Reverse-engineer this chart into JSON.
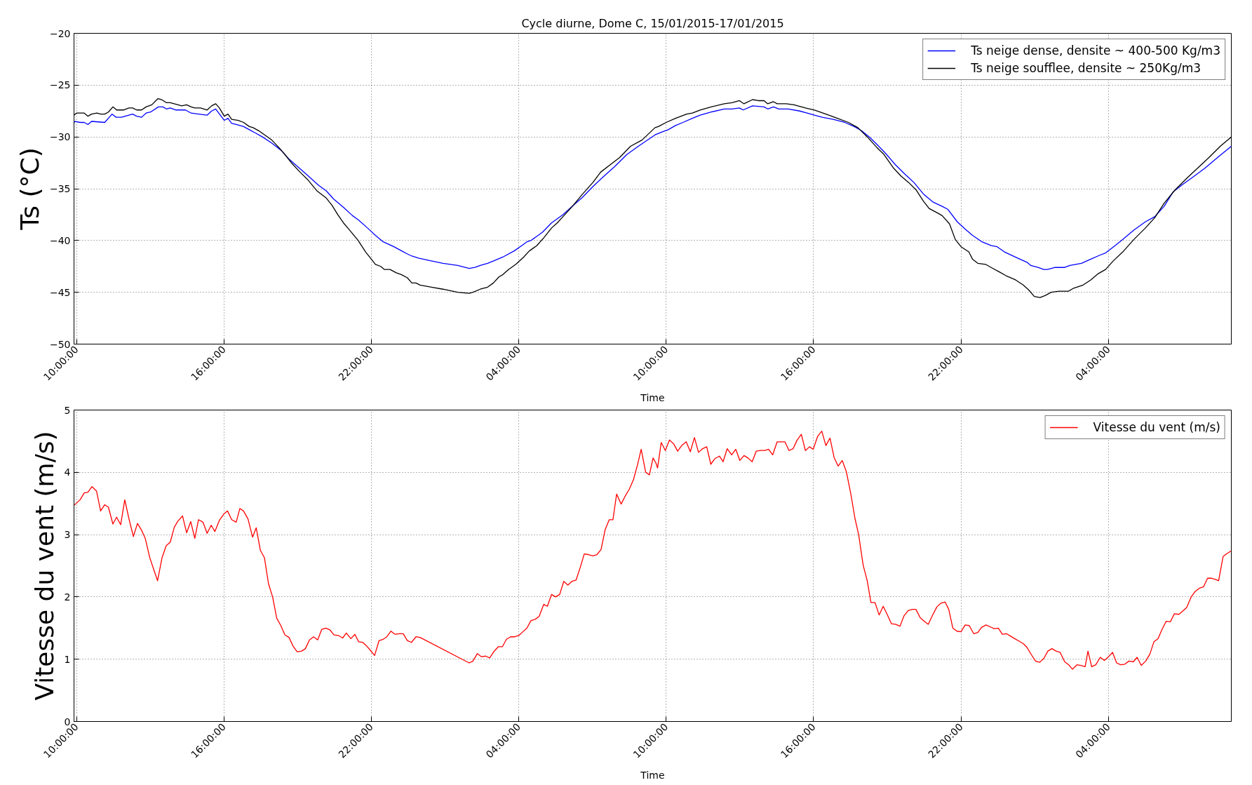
{
  "chart_data": [
    {
      "type": "line",
      "title": "Cycle diurne, Dome C, 15/01/2015-17/01/2015",
      "xlabel": "Time",
      "ylabel": "Ts (°C)",
      "xlim": [
        "2015-01-15T09:54",
        "2015-01-17T09:00"
      ],
      "xticks": [
        {
          "value": "2015-01-15T10:00",
          "label": "10:00:00"
        },
        {
          "value": "2015-01-15T16:00",
          "label": "16:00:00"
        },
        {
          "value": "2015-01-15T22:00",
          "label": "22:00:00"
        },
        {
          "value": "2015-01-16T04:00",
          "label": "04:00:00"
        },
        {
          "value": "2015-01-16T10:00",
          "label": "10:00:00"
        },
        {
          "value": "2015-01-16T16:00",
          "label": "16:00:00"
        },
        {
          "value": "2015-01-16T22:00",
          "label": "22:00:00"
        },
        {
          "value": "2015-01-17T04:00",
          "label": "04:00:00"
        }
      ],
      "ylim": [
        -50,
        -20
      ],
      "yticks": [
        -50,
        -45,
        -40,
        -35,
        -30,
        -25,
        -20
      ],
      "grid": true,
      "legend": "top right",
      "line_style": "solid",
      "series": [
        {
          "name": "Ts neige dense, densite ~ 400-500 Kg/m3",
          "color": "#0000ff",
          "x": [
            "2015-01-15T09:54",
            "2015-01-15T09:57",
            "2015-01-15T10:09",
            "2015-01-15T10:19",
            "2015-01-15T10:28",
            "2015-01-15T10:37",
            "2015-01-15T11:09",
            "2015-01-15T11:27",
            "2015-01-15T11:37",
            "2015-01-15T11:50",
            "2015-01-15T12:17",
            "2015-01-15T12:27",
            "2015-01-15T12:39",
            "2015-01-15T12:50",
            "2015-01-15T13:01",
            "2015-01-15T13:20",
            "2015-01-15T13:31",
            "2015-01-15T13:40",
            "2015-01-15T13:49",
            "2015-01-15T14:03",
            "2015-01-15T14:26",
            "2015-01-15T14:40",
            "2015-01-15T14:58",
            "2015-01-15T15:19",
            "2015-01-15T15:30",
            "2015-01-15T15:40",
            "2015-01-15T16:01",
            "2015-01-15T16:10",
            "2015-01-15T16:19",
            "2015-01-15T16:30",
            "2015-01-15T16:48",
            "2015-01-15T17:02",
            "2015-01-15T17:16",
            "2015-01-15T17:34",
            "2015-01-15T17:57",
            "2015-01-15T18:20",
            "2015-01-15T18:38",
            "2015-01-15T19:01",
            "2015-01-15T19:24",
            "2015-01-15T19:52",
            "2015-01-15T20:10",
            "2015-01-15T20:28",
            "2015-01-15T20:52",
            "2015-01-15T21:14",
            "2015-01-15T21:28",
            "2015-01-15T21:51",
            "2015-01-15T22:10",
            "2015-01-15T22:28",
            "2015-01-15T22:55",
            "2015-01-15T23:14",
            "2015-01-15T23:28",
            "2015-01-15T23:39",
            "2015-01-15T23:55",
            "2015-01-16T00:18",
            "2015-01-16T00:55",
            "2015-01-16T01:31",
            "2015-01-16T01:59",
            "2015-01-16T02:13",
            "2015-01-16T02:26",
            "2015-01-16T02:44",
            "2015-01-16T03:03",
            "2015-01-16T03:21",
            "2015-01-16T03:49",
            "2015-01-16T04:07",
            "2015-01-16T04:21",
            "2015-01-16T04:30",
            "2015-01-16T04:58",
            "2015-01-16T05:20",
            "2015-01-16T05:48",
            "2015-01-16T06:16",
            "2015-01-16T06:34",
            "2015-01-16T07:01",
            "2015-01-16T07:25",
            "2015-01-16T07:56",
            "2015-01-16T08:24",
            "2015-01-16T08:52",
            "2015-01-16T09:33",
            "2015-01-16T09:51",
            "2015-01-16T10:05",
            "2015-01-16T10:23",
            "2015-01-16T10:41",
            "2015-01-16T11:04",
            "2015-01-16T11:23",
            "2015-01-16T11:50",
            "2015-01-16T12:22",
            "2015-01-16T12:41",
            "2015-01-16T12:59",
            "2015-01-16T13:08",
            "2015-01-16T13:31",
            "2015-01-16T13:59",
            "2015-01-16T14:08",
            "2015-01-16T14:22",
            "2015-01-16T14:35",
            "2015-01-16T14:58",
            "2015-01-16T15:26",
            "2015-01-16T15:44",
            "2015-01-16T16:02",
            "2015-01-16T16:21",
            "2015-01-16T16:48",
            "2015-01-16T17:16",
            "2015-01-16T17:39",
            "2015-01-16T17:57",
            "2015-01-16T18:16",
            "2015-01-16T18:34",
            "2015-01-16T18:56",
            "2015-01-16T19:20",
            "2015-01-16T19:43",
            "2015-01-16T20:05",
            "2015-01-16T20:28",
            "2015-01-16T20:52",
            "2015-01-16T21:14",
            "2015-01-16T21:28",
            "2015-01-16T21:51",
            "2015-01-16T22:10",
            "2015-01-16T22:28",
            "2015-01-16T22:50",
            "2015-01-16T23:14",
            "2015-01-16T23:28",
            "2015-01-16T23:46",
            "2015-01-17T00:18",
            "2015-01-17T00:41",
            "2015-01-17T00:50",
            "2015-01-17T01:08",
            "2015-01-17T01:22",
            "2015-01-17T01:31",
            "2015-01-17T01:50",
            "2015-01-17T02:13",
            "2015-01-17T02:26",
            "2015-01-17T02:54",
            "2015-01-17T03:17",
            "2015-01-17T03:40",
            "2015-01-17T03:53",
            "2015-01-17T04:16",
            "2015-01-17T04:35",
            "2015-01-17T05:02",
            "2015-01-17T05:30",
            "2015-01-17T05:53",
            "2015-01-17T06:16",
            "2015-01-17T06:38",
            "2015-01-17T07:01",
            "2015-01-17T07:29",
            "2015-01-17T07:56",
            "2015-01-17T08:29",
            "2015-01-17T09:00"
          ],
          "values": [
            -28.6,
            -28.5,
            -28.6,
            -28.6,
            -28.8,
            -28.5,
            -28.6,
            -27.8,
            -28.1,
            -28.1,
            -27.8,
            -28.0,
            -28.1,
            -27.7,
            -27.6,
            -27.1,
            -27.1,
            -27.3,
            -27.2,
            -27.4,
            -27.4,
            -27.7,
            -27.8,
            -27.9,
            -27.5,
            -27.3,
            -28.4,
            -28.2,
            -28.7,
            -28.8,
            -29.0,
            -29.3,
            -29.6,
            -30.0,
            -30.6,
            -31.3,
            -32.1,
            -32.9,
            -33.7,
            -34.7,
            -35.2,
            -36.0,
            -36.8,
            -37.6,
            -38.0,
            -38.8,
            -39.5,
            -40.1,
            -40.6,
            -41.0,
            -41.3,
            -41.5,
            -41.7,
            -41.9,
            -42.2,
            -42.4,
            -42.7,
            -42.6,
            -42.4,
            -42.2,
            -41.9,
            -41.6,
            -41.0,
            -40.5,
            -40.1,
            -40.0,
            -39.2,
            -38.3,
            -37.5,
            -36.5,
            -35.9,
            -34.8,
            -33.9,
            -32.8,
            -31.7,
            -30.9,
            -29.8,
            -29.5,
            -29.3,
            -28.9,
            -28.6,
            -28.2,
            -27.9,
            -27.6,
            -27.3,
            -27.3,
            -27.2,
            -27.4,
            -27.0,
            -27.1,
            -27.3,
            -27.1,
            -27.3,
            -27.3,
            -27.5,
            -27.7,
            -27.9,
            -28.1,
            -28.3,
            -28.6,
            -29.0,
            -29.4,
            -30.0,
            -30.7,
            -31.6,
            -32.7,
            -33.6,
            -34.4,
            -35.5,
            -36.3,
            -36.7,
            -37.0,
            -38.2,
            -38.9,
            -39.5,
            -40.1,
            -40.5,
            -40.6,
            -41.1,
            -41.7,
            -42.1,
            -42.4,
            -42.6,
            -42.8,
            -42.8,
            -42.6,
            -42.6,
            -42.4,
            -42.2,
            -41.8,
            -41.4,
            -41.2,
            -40.5,
            -39.9,
            -39.0,
            -38.2,
            -37.7,
            -36.7,
            -35.3,
            -34.6,
            -33.8,
            -33.0,
            -31.9,
            -30.9
          ]
        },
        {
          "name": "Ts neige soufflee, densite ~ 250Kg/m3",
          "color": "#000000",
          "x": [
            "2015-01-15T09:54",
            "2015-01-15T10:00",
            "2015-01-15T10:19",
            "2015-01-15T10:28",
            "2015-01-15T10:37",
            "2015-01-15T10:50",
            "2015-01-15T10:59",
            "2015-01-15T11:09",
            "2015-01-15T11:18",
            "2015-01-15T11:29",
            "2015-01-15T11:38",
            "2015-01-15T11:55",
            "2015-01-15T12:08",
            "2015-01-15T12:17",
            "2015-01-15T12:27",
            "2015-01-15T12:39",
            "2015-01-15T12:50",
            "2015-01-15T13:04",
            "2015-01-15T13:19",
            "2015-01-15T13:28",
            "2015-01-15T13:40",
            "2015-01-15T13:49",
            "2015-01-15T14:08",
            "2015-01-15T14:17",
            "2015-01-15T14:29",
            "2015-01-15T14:40",
            "2015-01-15T14:49",
            "2015-01-15T15:03",
            "2015-01-15T15:19",
            "2015-01-15T15:30",
            "2015-01-15T15:40",
            "2015-01-15T15:49",
            "2015-01-15T16:01",
            "2015-01-15T16:10",
            "2015-01-15T16:19",
            "2015-01-15T16:35",
            "2015-01-15T16:48",
            "2015-01-15T17:02",
            "2015-01-15T17:11",
            "2015-01-15T17:25",
            "2015-01-15T17:43",
            "2015-01-15T17:57",
            "2015-01-15T18:16",
            "2015-01-15T18:29",
            "2015-01-15T18:47",
            "2015-01-15T19:06",
            "2015-01-15T19:24",
            "2015-01-15T19:47",
            "2015-01-15T20:10",
            "2015-01-15T20:24",
            "2015-01-15T20:38",
            "2015-01-15T20:52",
            "2015-01-15T21:05",
            "2015-01-15T21:28",
            "2015-01-15T21:46",
            "2015-01-15T22:00",
            "2015-01-15T22:10",
            "2015-01-15T22:23",
            "2015-01-15T22:32",
            "2015-01-15T22:46",
            "2015-01-15T23:00",
            "2015-01-15T23:14",
            "2015-01-15T23:28",
            "2015-01-15T23:39",
            "2015-01-15T23:49",
            "2015-01-15T23:59",
            "2015-01-16T00:27",
            "2015-01-16T00:55",
            "2015-01-16T01:31",
            "2015-01-16T01:59",
            "2015-01-16T02:08",
            "2015-01-16T02:26",
            "2015-01-16T02:44",
            "2015-01-16T02:58",
            "2015-01-16T03:12",
            "2015-01-16T03:21",
            "2015-01-16T03:35",
            "2015-01-16T03:53",
            "2015-01-16T04:12",
            "2015-01-16T04:26",
            "2015-01-16T04:44",
            "2015-01-16T05:02",
            "2015-01-16T05:20",
            "2015-01-16T05:34",
            "2015-01-16T05:48",
            "2015-01-16T06:11",
            "2015-01-16T06:34",
            "2015-01-16T07:01",
            "2015-01-16T07:20",
            "2015-01-16T07:43",
            "2015-01-16T08:06",
            "2015-01-16T08:33",
            "2015-01-16T09:01",
            "2015-01-16T09:33",
            "2015-01-16T09:41",
            "2015-01-16T10:00",
            "2015-01-16T10:23",
            "2015-01-16T10:50",
            "2015-01-16T11:04",
            "2015-01-16T11:23",
            "2015-01-16T11:50",
            "2015-01-16T12:22",
            "2015-01-16T12:41",
            "2015-01-16T12:59",
            "2015-01-16T13:10",
            "2015-01-16T13:31",
            "2015-01-16T13:45",
            "2015-01-16T13:59",
            "2015-01-16T14:08",
            "2015-01-16T14:22",
            "2015-01-16T14:31",
            "2015-01-16T14:53",
            "2015-01-16T15:12",
            "2015-01-16T15:40",
            "2015-01-16T16:02",
            "2015-01-16T16:30",
            "2015-01-16T16:58",
            "2015-01-16T17:25",
            "2015-01-16T17:48",
            "2015-01-16T18:11",
            "2015-01-16T18:34",
            "2015-01-16T18:52",
            "2015-01-16T19:15",
            "2015-01-16T19:34",
            "2015-01-16T19:52",
            "2015-01-16T20:10",
            "2015-01-16T20:28",
            "2015-01-16T20:42",
            "2015-01-16T21:05",
            "2015-01-16T21:14",
            "2015-01-16T21:32",
            "2015-01-16T21:46",
            "2015-01-16T22:00",
            "2015-01-16T22:19",
            "2015-01-16T22:28",
            "2015-01-16T22:41",
            "2015-01-16T23:00",
            "2015-01-16T23:18",
            "2015-01-16T23:32",
            "2015-01-16T23:50",
            "2015-01-17T00:13",
            "2015-01-17T00:32",
            "2015-01-17T00:46",
            "2015-01-17T00:59",
            "2015-01-17T01:13",
            "2015-01-17T01:26",
            "2015-01-17T01:40",
            "2015-01-17T01:59",
            "2015-01-17T02:22",
            "2015-01-17T02:35",
            "2015-01-17T02:58",
            "2015-01-17T03:17",
            "2015-01-17T03:35",
            "2015-01-17T03:53",
            "2015-01-17T04:11",
            "2015-01-17T04:35",
            "2015-01-17T05:02",
            "2015-01-17T05:30",
            "2015-01-17T05:53",
            "2015-01-17T06:16",
            "2015-01-17T06:43",
            "2015-01-17T07:11",
            "2015-01-17T07:38",
            "2015-01-17T08:05",
            "2015-01-17T08:33",
            "2015-01-17T09:00"
          ],
          "values": [
            -27.9,
            -27.7,
            -27.7,
            -28.0,
            -27.8,
            -27.7,
            -27.8,
            -27.8,
            -27.6,
            -27.1,
            -27.4,
            -27.4,
            -27.2,
            -27.2,
            -27.4,
            -27.4,
            -27.1,
            -26.9,
            -26.3,
            -26.4,
            -26.7,
            -26.7,
            -26.9,
            -27.0,
            -26.9,
            -27.1,
            -27.2,
            -27.2,
            -27.4,
            -27.0,
            -26.8,
            -27.2,
            -28.0,
            -27.8,
            -28.3,
            -28.4,
            -28.6,
            -29.0,
            -29.1,
            -29.4,
            -29.9,
            -30.3,
            -31.1,
            -31.7,
            -32.6,
            -33.4,
            -34.1,
            -35.2,
            -35.9,
            -36.6,
            -37.5,
            -38.3,
            -38.9,
            -40.0,
            -41.1,
            -41.8,
            -42.3,
            -42.5,
            -42.8,
            -42.8,
            -43.1,
            -43.3,
            -43.6,
            -44.1,
            -44.1,
            -44.3,
            -44.5,
            -44.7,
            -45.0,
            -45.1,
            -45.0,
            -44.7,
            -44.5,
            -44.1,
            -43.5,
            -43.3,
            -42.8,
            -42.3,
            -41.6,
            -41.0,
            -40.5,
            -39.7,
            -38.8,
            -38.3,
            -37.7,
            -36.7,
            -35.6,
            -34.4,
            -33.4,
            -32.7,
            -32.0,
            -30.9,
            -30.3,
            -29.1,
            -29.0,
            -28.6,
            -28.2,
            -27.8,
            -27.7,
            -27.4,
            -27.1,
            -26.8,
            -26.7,
            -26.5,
            -26.8,
            -26.4,
            -26.5,
            -26.5,
            -26.8,
            -26.6,
            -26.8,
            -26.8,
            -26.9,
            -27.2,
            -27.4,
            -27.8,
            -28.2,
            -28.6,
            -29.1,
            -30.0,
            -31.0,
            -31.7,
            -33.0,
            -33.8,
            -34.4,
            -35.1,
            -36.2,
            -36.9,
            -37.4,
            -37.6,
            -38.4,
            -39.9,
            -40.6,
            -41.1,
            -41.8,
            -42.2,
            -42.3,
            -42.7,
            -43.0,
            -43.4,
            -43.8,
            -44.3,
            -44.8,
            -45.4,
            -45.5,
            -45.3,
            -45.0,
            -44.9,
            -44.9,
            -44.6,
            -44.3,
            -43.8,
            -43.2,
            -42.8,
            -42.0,
            -41.1,
            -39.9,
            -38.8,
            -37.8,
            -36.4,
            -35.1,
            -34.0,
            -33.0,
            -32.0,
            -30.9,
            -30.0
          ]
        }
      ]
    },
    {
      "type": "line",
      "xlabel": "Time",
      "ylabel": "Vitesse du vent (m/s)",
      "xlim": [
        "2015-01-15T09:54",
        "2015-01-17T09:00"
      ],
      "xticks": [
        {
          "value": "2015-01-15T10:00",
          "label": "10:00:00"
        },
        {
          "value": "2015-01-15T16:00",
          "label": "16:00:00"
        },
        {
          "value": "2015-01-15T22:00",
          "label": "22:00:00"
        },
        {
          "value": "2015-01-16T04:00",
          "label": "04:00:00"
        },
        {
          "value": "2015-01-16T10:00",
          "label": "10:00:00"
        },
        {
          "value": "2015-01-16T16:00",
          "label": "16:00:00"
        },
        {
          "value": "2015-01-16T22:00",
          "label": "22:00:00"
        },
        {
          "value": "2015-01-17T04:00",
          "label": "04:00:00"
        }
      ],
      "ylim": [
        0,
        5
      ],
      "yticks": [
        0,
        1,
        2,
        3,
        4,
        5
      ],
      "grid": true,
      "legend": "top right",
      "line_style": "solid",
      "series": [
        {
          "name": "Vitesse du vent (m/s)",
          "color": "#ff0000",
          "x": [
            "2015-01-15T09:54",
            "2015-01-15T10:09",
            "2015-01-15T10:19",
            "2015-01-15T10:28",
            "2015-01-15T10:38",
            "2015-01-15T10:49",
            "2015-01-15T10:59",
            "2015-01-15T11:09",
            "2015-01-15T11:18",
            "2015-01-15T11:29",
            "2015-01-15T11:38",
            "2015-01-15T11:48",
            "2015-01-15T11:58",
            "2015-01-15T12:08",
            "2015-01-15T12:19",
            "2015-01-15T12:29",
            "2015-01-15T12:39",
            "2015-01-15T12:48",
            "2015-01-15T12:59",
            "2015-01-15T13:18",
            "2015-01-15T13:29",
            "2015-01-15T13:39",
            "2015-01-15T13:49",
            "2015-01-15T13:59",
            "2015-01-15T14:08",
            "2015-01-15T14:19",
            "2015-01-15T14:29",
            "2015-01-15T14:39",
            "2015-01-15T14:49",
            "2015-01-15T14:58",
            "2015-01-15T15:09",
            "2015-01-15T15:19",
            "2015-01-15T15:29",
            "2015-01-15T15:38",
            "2015-01-15T15:49",
            "2015-01-15T16:01",
            "2015-01-15T16:09",
            "2015-01-15T16:19",
            "2015-01-15T16:30",
            "2015-01-15T16:39",
            "2015-01-15T16:48",
            "2015-01-15T16:59",
            "2015-01-15T17:10",
            "2015-01-15T17:19",
            "2015-01-15T17:29",
            "2015-01-15T17:39",
            "2015-01-15T17:49",
            "2015-01-15T17:59",
            "2015-01-15T18:09",
            "2015-01-15T18:19",
            "2015-01-15T18:29",
            "2015-01-15T18:39",
            "2015-01-15T18:49",
            "2015-01-15T18:59",
            "2015-01-15T19:10",
            "2015-01-15T19:19",
            "2015-01-15T19:29",
            "2015-01-15T19:39",
            "2015-01-15T19:49",
            "2015-01-15T19:59",
            "2015-01-15T20:09",
            "2015-01-15T20:19",
            "2015-01-15T20:29",
            "2015-01-15T20:40",
            "2015-01-15T20:50",
            "2015-01-15T20:59",
            "2015-01-15T21:10",
            "2015-01-15T21:20",
            "2015-01-15T21:29",
            "2015-01-15T21:39",
            "2015-01-15T21:49",
            "2015-01-15T21:58",
            "2015-01-15T22:08",
            "2015-01-15T22:19",
            "2015-01-15T22:29",
            "2015-01-15T22:38",
            "2015-01-15T22:48",
            "2015-01-15T22:58",
            "2015-01-15T23:08",
            "2015-01-15T23:18",
            "2015-01-15T23:28",
            "2015-01-15T23:38",
            "2015-01-15T23:49",
            "2015-01-15T23:59",
            "2015-01-16T01:59",
            "2015-01-16T02:08",
            "2015-01-16T02:19",
            "2015-01-16T02:29",
            "2015-01-16T02:39",
            "2015-01-16T02:49",
            "2015-01-16T02:59",
            "2015-01-16T03:10",
            "2015-01-16T03:20",
            "2015-01-16T03:30",
            "2015-01-16T03:40",
            "2015-01-16T03:50",
            "2015-01-16T04:00",
            "2015-01-16T04:10",
            "2015-01-16T04:20",
            "2015-01-16T04:30",
            "2015-01-16T04:40",
            "2015-01-16T04:50",
            "2015-01-16T05:01",
            "2015-01-16T05:10",
            "2015-01-16T05:20",
            "2015-01-16T05:30",
            "2015-01-16T05:40",
            "2015-01-16T05:50",
            "2015-01-16T06:00",
            "2015-01-16T06:10",
            "2015-01-16T06:20",
            "2015-01-16T06:30",
            "2015-01-16T06:40",
            "2015-01-16T06:50",
            "2015-01-16T07:01",
            "2015-01-16T07:11",
            "2015-01-16T07:21",
            "2015-01-16T07:31",
            "2015-01-16T07:41",
            "2015-01-16T07:50",
            "2015-01-16T07:59",
            "2015-01-16T08:10",
            "2015-01-16T08:20",
            "2015-01-16T08:30",
            "2015-01-16T08:40",
            "2015-01-16T08:50",
            "2015-01-16T08:59",
            "2015-01-16T09:10",
            "2015-01-16T09:19",
            "2015-01-16T09:28",
            "2015-01-16T09:35",
            "2015-01-16T09:39",
            "2015-01-16T09:48",
            "2015-01-16T09:58",
            "2015-01-16T10:08",
            "2015-01-16T10:19",
            "2015-01-16T10:28",
            "2015-01-16T10:38",
            "2015-01-16T10:49",
            "2015-01-16T10:59",
            "2015-01-16T11:09",
            "2015-01-16T11:19",
            "2015-01-16T11:29",
            "2015-01-16T11:39",
            "2015-01-16T11:49",
            "2015-01-16T11:59",
            "2015-01-16T12:10",
            "2015-01-16T12:19",
            "2015-01-16T12:29",
            "2015-01-16T12:40",
            "2015-01-16T12:50",
            "2015-01-16T13:00",
            "2015-01-16T13:10",
            "2015-01-16T13:20",
            "2015-01-16T13:30",
            "2015-01-16T13:40",
            "2015-01-16T13:50",
            "2015-01-16T14:01",
            "2015-01-16T14:10",
            "2015-01-16T14:20",
            "2015-01-16T14:31",
            "2015-01-16T14:40",
            "2015-01-16T14:50",
            "2015-01-16T15:00",
            "2015-01-16T15:10",
            "2015-01-16T15:20",
            "2015-01-16T15:30",
            "2015-01-16T15:40",
            "2015-01-16T15:50",
            "2015-01-16T15:59",
            "2015-01-16T16:10",
            "2015-01-16T16:20",
            "2015-01-16T16:30",
            "2015-01-16T16:40",
            "2015-01-16T16:50",
            "2015-01-16T17:00",
            "2015-01-16T17:10",
            "2015-01-16T17:20",
            "2015-01-16T17:31",
            "2015-01-16T17:41",
            "2015-01-16T17:50",
            "2015-01-16T18:01",
            "2015-01-16T18:11",
            "2015-01-16T18:20",
            "2015-01-16T18:30",
            "2015-01-16T18:40",
            "2015-01-16T18:50",
            "2015-01-16T19:01",
            "2015-01-16T19:10",
            "2015-01-16T19:20",
            "2015-01-16T19:31",
            "2015-01-16T19:41",
            "2015-01-16T19:51",
            "2015-01-16T20:01",
            "2015-01-16T20:10",
            "2015-01-16T20:20",
            "2015-01-16T20:30",
            "2015-01-16T20:40",
            "2015-01-16T20:50",
            "2015-01-16T21:01",
            "2015-01-16T21:11",
            "2015-01-16T21:21",
            "2015-01-16T21:30",
            "2015-01-16T21:40",
            "2015-01-16T21:50",
            "2015-01-16T22:00",
            "2015-01-16T22:10",
            "2015-01-16T22:20",
            "2015-01-16T22:31",
            "2015-01-16T22:41",
            "2015-01-16T22:50",
            "2015-01-16T23:01",
            "2015-01-16T23:11",
            "2015-01-16T23:21",
            "2015-01-16T23:31",
            "2015-01-16T23:41",
            "2015-01-16T23:51",
            "2015-01-17T00:01",
            "2015-01-17T00:11",
            "2015-01-17T00:22",
            "2015-01-17T00:32",
            "2015-01-17T00:41",
            "2015-01-17T00:52",
            "2015-01-17T01:02",
            "2015-01-17T01:12",
            "2015-01-17T01:22",
            "2015-01-17T01:32",
            "2015-01-17T01:42",
            "2015-01-17T01:52",
            "2015-01-17T02:02",
            "2015-01-17T02:13",
            "2015-01-17T02:23",
            "2015-01-17T02:32",
            "2015-01-17T02:43",
            "2015-01-17T02:53",
            "2015-01-17T03:03",
            "2015-01-17T03:10",
            "2015-01-17T03:19",
            "2015-01-17T03:29",
            "2015-01-17T03:40",
            "2015-01-17T03:50",
            "2015-01-17T04:00",
            "2015-01-17T04:10",
            "2015-01-17T04:20",
            "2015-01-17T04:30",
            "2015-01-17T04:40",
            "2015-01-17T04:50",
            "2015-01-17T05:01",
            "2015-01-17T05:10",
            "2015-01-17T05:20",
            "2015-01-17T05:31",
            "2015-01-17T05:41",
            "2015-01-17T05:51",
            "2015-01-17T06:01",
            "2015-01-17T06:11",
            "2015-01-17T06:21",
            "2015-01-17T06:31",
            "2015-01-17T06:41",
            "2015-01-17T06:52",
            "2015-01-17T07:01",
            "2015-01-17T07:11",
            "2015-01-17T07:22",
            "2015-01-17T07:32",
            "2015-01-17T07:42",
            "2015-01-17T07:52",
            "2015-01-17T08:02",
            "2015-01-17T08:12",
            "2015-01-17T08:22",
            "2015-01-17T08:29",
            "2015-01-17T08:40",
            "2015-01-17T08:50",
            "2015-01-17T09:00"
          ],
          "values": [
            3.47,
            3.56,
            3.67,
            3.68,
            3.77,
            3.7,
            3.38,
            3.48,
            3.44,
            3.17,
            3.28,
            3.16,
            3.56,
            3.26,
            2.97,
            3.18,
            3.07,
            2.94,
            2.63,
            2.26,
            2.63,
            2.82,
            2.88,
            3.12,
            3.22,
            3.3,
            3.03,
            3.21,
            2.94,
            3.24,
            3.2,
            3.02,
            3.15,
            3.05,
            3.23,
            3.34,
            3.38,
            3.24,
            3.2,
            3.42,
            3.38,
            3.25,
            2.96,
            3.11,
            2.75,
            2.63,
            2.21,
            2.0,
            1.66,
            1.54,
            1.39,
            1.35,
            1.21,
            1.12,
            1.13,
            1.17,
            1.31,
            1.36,
            1.31,
            1.48,
            1.5,
            1.47,
            1.39,
            1.38,
            1.34,
            1.42,
            1.33,
            1.4,
            1.28,
            1.27,
            1.21,
            1.14,
            1.06,
            1.3,
            1.32,
            1.36,
            1.45,
            1.4,
            1.41,
            1.41,
            1.3,
            1.27,
            1.36,
            1.35,
            0.94,
            0.97,
            1.09,
            1.04,
            1.05,
            1.02,
            1.12,
            1.2,
            1.2,
            1.32,
            1.36,
            1.36,
            1.38,
            1.44,
            1.5,
            1.62,
            1.64,
            1.69,
            1.88,
            1.85,
            2.04,
            2.0,
            2.04,
            2.25,
            2.19,
            2.25,
            2.27,
            2.47,
            2.69,
            2.68,
            2.66,
            2.68,
            2.76,
            3.08,
            3.24,
            3.24,
            3.65,
            3.49,
            3.62,
            3.73,
            3.88,
            4.12,
            4.37,
            4.0,
            3.96,
            4.23,
            4.15,
            4.07,
            4.48,
            4.35,
            4.52,
            4.45,
            4.34,
            4.43,
            4.49,
            4.33,
            4.56,
            4.32,
            4.38,
            4.41,
            4.13,
            4.22,
            4.26,
            4.17,
            4.38,
            4.28,
            4.37,
            4.19,
            4.27,
            4.23,
            4.17,
            4.34,
            4.35,
            4.35,
            4.37,
            4.28,
            4.49,
            4.49,
            4.49,
            4.35,
            4.38,
            4.52,
            4.61,
            4.35,
            4.41,
            4.37,
            4.58,
            4.66,
            4.43,
            4.55,
            4.24,
            4.1,
            4.19,
            4.01,
            3.65,
            3.26,
            3.0,
            2.51,
            2.26,
            1.91,
            1.91,
            1.71,
            1.85,
            1.7,
            1.57,
            1.56,
            1.53,
            1.7,
            1.78,
            1.8,
            1.8,
            1.67,
            1.61,
            1.56,
            1.7,
            1.84,
            1.9,
            1.92,
            1.8,
            1.5,
            1.45,
            1.44,
            1.55,
            1.54,
            1.41,
            1.43,
            1.51,
            1.55,
            1.52,
            1.49,
            1.5,
            1.4,
            1.41,
            1.37,
            1.33,
            1.29,
            1.25,
            1.19,
            1.07,
            0.97,
            0.95,
            1.01,
            1.13,
            1.17,
            1.13,
            1.11,
            0.96,
            0.91,
            0.84,
            0.91,
            0.9,
            0.88,
            1.13,
            0.88,
            0.91,
            1.03,
            0.98,
            1.04,
            1.11,
            0.94,
            0.91,
            0.92,
            0.97,
            0.96,
            1.03,
            0.9,
            0.97,
            1.08,
            1.28,
            1.33,
            1.48,
            1.61,
            1.6,
            1.73,
            1.72,
            1.77,
            1.83,
            2.0,
            2.09,
            2.14,
            2.16,
            2.3,
            2.3,
            2.28,
            2.26,
            2.65,
            2.7,
            2.74
          ]
        }
      ]
    }
  ]
}
